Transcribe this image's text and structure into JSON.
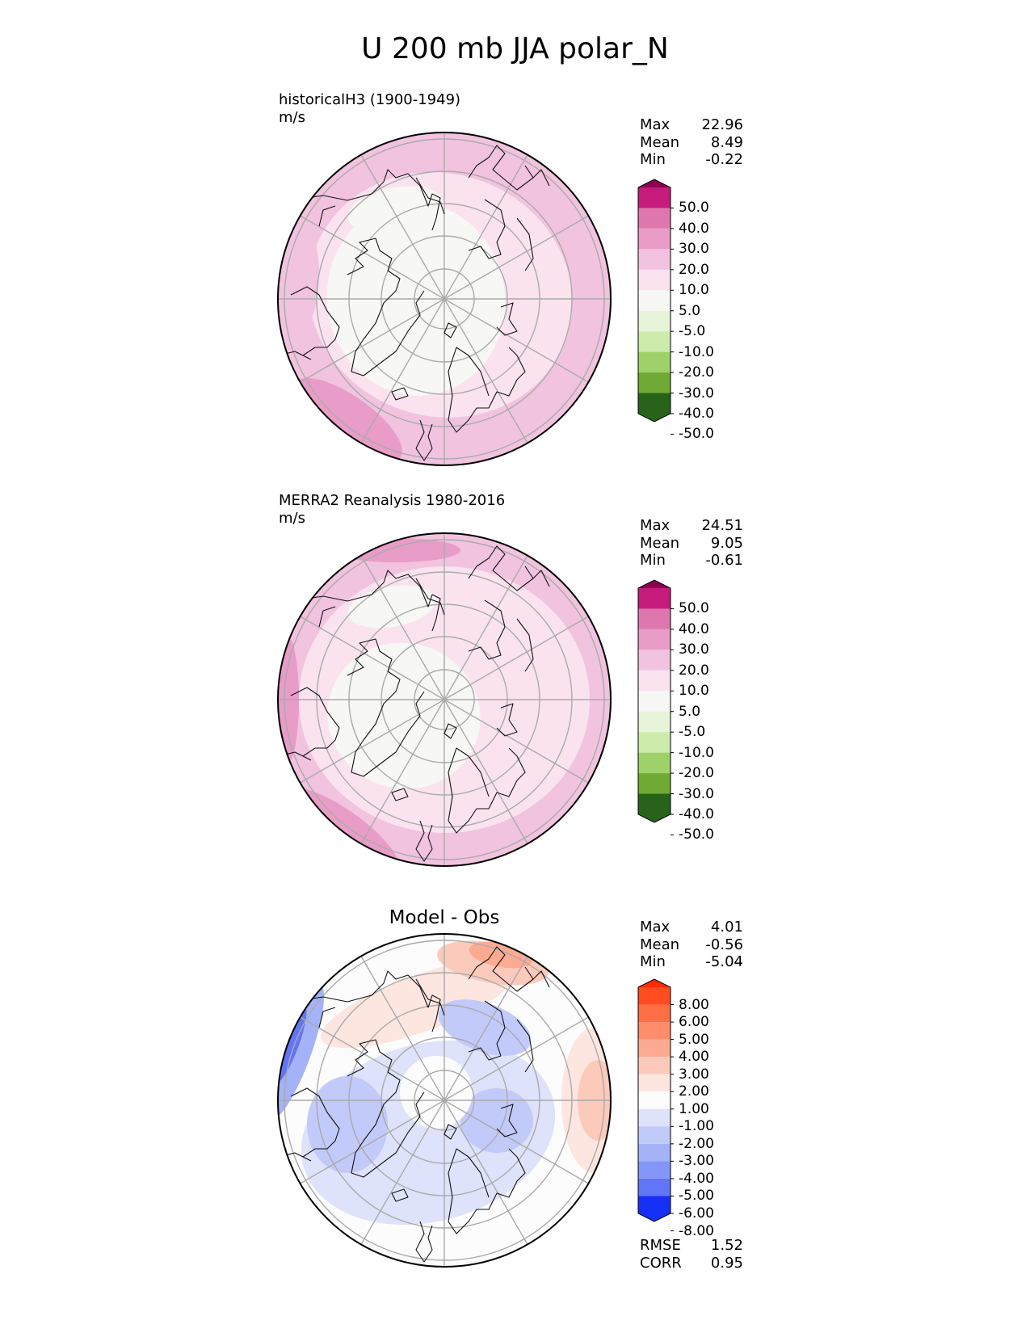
{
  "title": "U 200 mb JJA polar_N",
  "chart_data": [
    {
      "type": "heatmap",
      "projection": "north polar stereographic",
      "title": "historicalH3 (1900-1949)",
      "units": "m/s",
      "stats": [
        {
          "label": "Max",
          "value": "22.96"
        },
        {
          "label": "Mean",
          "value": "8.49"
        },
        {
          "label": "Min",
          "value": "-0.22"
        }
      ],
      "colorbar": {
        "levels": [
          "50.0",
          "40.0",
          "30.0",
          "20.0",
          "10.0",
          "5.0",
          "-5.0",
          "-10.0",
          "-20.0",
          "-30.0",
          "-40.0",
          "-50.0"
        ],
        "colors": [
          "#8e0152",
          "#c51b7d",
          "#de77ae",
          "#e99cc8",
          "#f1c3df",
          "#fae3ef",
          "#f7f7f5",
          "#e8f4d9",
          "#cdebaa",
          "#9fd16a",
          "#6faa35",
          "#488a25",
          "#276419"
        ]
      }
    },
    {
      "type": "heatmap",
      "projection": "north polar stereographic",
      "title": "MERRA2 Reanalysis 1980-2016",
      "units": "m/s",
      "stats": [
        {
          "label": "Max",
          "value": "24.51"
        },
        {
          "label": "Mean",
          "value": "9.05"
        },
        {
          "label": "Min",
          "value": "-0.61"
        }
      ],
      "colorbar": {
        "levels": [
          "50.0",
          "40.0",
          "30.0",
          "20.0",
          "10.0",
          "5.0",
          "-5.0",
          "-10.0",
          "-20.0",
          "-30.0",
          "-40.0",
          "-50.0"
        ],
        "colors": [
          "#8e0152",
          "#c51b7d",
          "#de77ae",
          "#e99cc8",
          "#f1c3df",
          "#fae3ef",
          "#f7f7f5",
          "#e8f4d9",
          "#cdebaa",
          "#9fd16a",
          "#6faa35",
          "#488a25",
          "#276419"
        ]
      }
    },
    {
      "type": "heatmap",
      "projection": "north polar stereographic",
      "title": "Model - Obs",
      "units": "",
      "stats": [
        {
          "label": "Max",
          "value": "4.01"
        },
        {
          "label": "Mean",
          "value": "-0.56"
        },
        {
          "label": "Min",
          "value": "-5.04"
        }
      ],
      "metrics": [
        {
          "label": "RMSE",
          "value": "1.52"
        },
        {
          "label": "CORR",
          "value": "0.95"
        }
      ],
      "colorbar": {
        "levels": [
          "8.00",
          "6.00",
          "5.00",
          "4.00",
          "3.00",
          "2.00",
          "1.00",
          "-1.00",
          "-2.00",
          "-3.00",
          "-4.00",
          "-5.00",
          "-6.00",
          "-8.00"
        ],
        "colors": [
          "#ff2a00",
          "#ff4d1f",
          "#ff6e45",
          "#ff8c6b",
          "#fcab92",
          "#fbcabb",
          "#fde6df",
          "#fcfcfc",
          "#dee3fb",
          "#c2cafa",
          "#a4b2f8",
          "#8496f7",
          "#6275f6",
          "#3f53f5",
          "#1730f5"
        ]
      }
    }
  ]
}
